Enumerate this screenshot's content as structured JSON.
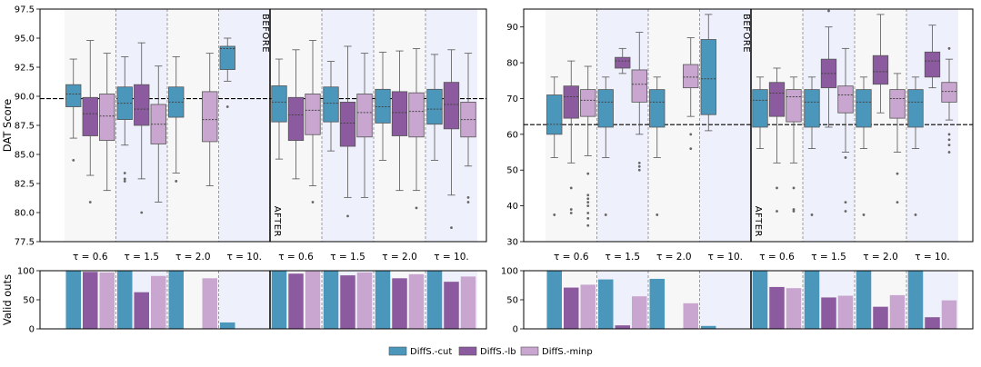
{
  "chart_data": {
    "type": "boxplot",
    "series_names": [
      "DiffS.-cut",
      "DiffS.-lb",
      "DiffS.-minp"
    ],
    "colors": {
      "DiffS.-cut": "#4b97bc",
      "DiffS.-lb": "#8c5a9e",
      "DiffS.-minp": "#c9a6cf"
    },
    "group_labels": [
      "τ = 0.6",
      "τ = 1.5",
      "τ = 2.0",
      "τ = 10."
    ],
    "group_shading": [
      false,
      true,
      false,
      true
    ],
    "section_labels": {
      "before": "BEFORE",
      "after": "AFTER"
    },
    "left": {
      "ylabel": "DAT Score",
      "ylim": [
        77.5,
        97.5
      ],
      "yticks": [
        "77.5",
        "80.0",
        "82.5",
        "85.0",
        "87.5",
        "90.0",
        "92.5",
        "95.0",
        "97.5"
      ],
      "reference_line": 89.8,
      "before": [
        {
          "group": "τ = 0.6",
          "boxes": [
            {
              "series": "DiffS.-cut",
              "min": 86.4,
              "q1": 89.1,
              "median": 90.2,
              "q3": 91.0,
              "max": 93.2,
              "outliers": [
                84.5
              ]
            },
            {
              "series": "DiffS.-lb",
              "min": 83.2,
              "q1": 86.6,
              "median": 88.5,
              "q3": 89.9,
              "max": 94.8,
              "outliers": [
                80.9
              ]
            },
            {
              "series": "DiffS.-minp",
              "min": 81.9,
              "q1": 86.2,
              "median": 88.3,
              "q3": 90.2,
              "max": 93.7,
              "outliers": []
            }
          ]
        },
        {
          "group": "τ = 1.5",
          "boxes": [
            {
              "series": "DiffS.-cut",
              "min": 85.8,
              "q1": 88.0,
              "median": 89.4,
              "q3": 90.8,
              "max": 93.4,
              "outliers": [
                83.4,
                82.9,
                82.7
              ]
            },
            {
              "series": "DiffS.-lb",
              "min": 82.9,
              "q1": 87.5,
              "median": 88.9,
              "q3": 91.0,
              "max": 94.6,
              "outliers": [
                80.0
              ]
            },
            {
              "series": "DiffS.-minp",
              "min": 80.9,
              "q1": 85.9,
              "median": 87.6,
              "q3": 89.3,
              "max": 92.6,
              "outliers": []
            }
          ]
        },
        {
          "group": "τ = 2.0",
          "boxes": [
            {
              "series": "DiffS.-cut",
              "min": 83.4,
              "q1": 88.2,
              "median": 89.5,
              "q3": 90.8,
              "max": 93.4,
              "outliers": [
                82.7
              ]
            },
            {
              "series": "DiffS.-minp",
              "min": 82.3,
              "q1": 86.1,
              "median": 88.0,
              "q3": 90.4,
              "max": 93.7,
              "outliers": []
            }
          ]
        },
        {
          "group": "τ = 10.",
          "boxes": [
            {
              "series": "DiffS.-cut",
              "min": 91.3,
              "q1": 92.3,
              "median": 94.1,
              "q3": 94.3,
              "max": 95.0,
              "outliers": [
                89.1
              ]
            }
          ]
        }
      ],
      "after": [
        {
          "group": "τ = 0.6",
          "boxes": [
            {
              "series": "DiffS.-cut",
              "min": 84.6,
              "q1": 87.8,
              "median": 89.5,
              "q3": 90.9,
              "max": 93.2,
              "outliers": []
            },
            {
              "series": "DiffS.-lb",
              "min": 82.9,
              "q1": 86.2,
              "median": 88.4,
              "q3": 89.9,
              "max": 94.0,
              "outliers": []
            },
            {
              "series": "DiffS.-minp",
              "min": 82.3,
              "q1": 86.7,
              "median": 88.8,
              "q3": 90.2,
              "max": 94.8,
              "outliers": [
                80.9
              ]
            }
          ]
        },
        {
          "group": "τ = 1.5",
          "boxes": [
            {
              "series": "DiffS.-cut",
              "min": 85.3,
              "q1": 87.8,
              "median": 89.4,
              "q3": 90.8,
              "max": 93.0,
              "outliers": []
            },
            {
              "series": "DiffS.-lb",
              "min": 81.3,
              "q1": 85.7,
              "median": 87.7,
              "q3": 89.5,
              "max": 94.3,
              "outliers": [
                79.7
              ]
            },
            {
              "series": "DiffS.-minp",
              "min": 81.3,
              "q1": 86.5,
              "median": 88.6,
              "q3": 90.2,
              "max": 93.7,
              "outliers": []
            }
          ]
        },
        {
          "group": "τ = 2.0",
          "boxes": [
            {
              "series": "DiffS.-cut",
              "min": 84.5,
              "q1": 87.7,
              "median": 89.1,
              "q3": 90.6,
              "max": 93.8,
              "outliers": []
            },
            {
              "series": "DiffS.-lb",
              "min": 81.9,
              "q1": 86.6,
              "median": 88.6,
              "q3": 90.4,
              "max": 93.9,
              "outliers": []
            },
            {
              "series": "DiffS.-minp",
              "min": 81.9,
              "q1": 86.5,
              "median": 88.7,
              "q3": 90.3,
              "max": 94.1,
              "outliers": [
                80.4
              ]
            }
          ]
        },
        {
          "group": "τ = 10.",
          "boxes": [
            {
              "series": "DiffS.-cut",
              "min": 84.5,
              "q1": 87.6,
              "median": 88.9,
              "q3": 90.6,
              "max": 93.6,
              "outliers": []
            },
            {
              "series": "DiffS.-lb",
              "min": 81.5,
              "q1": 87.2,
              "median": 89.3,
              "q3": 91.2,
              "max": 94.0,
              "outliers": [
                78.7
              ]
            },
            {
              "series": "DiffS.-minp",
              "min": 84.0,
              "q1": 86.5,
              "median": 88.0,
              "q3": 89.5,
              "max": 93.7,
              "outliers": [
                81.3,
                80.9
              ]
            }
          ]
        }
      ]
    },
    "right": {
      "ylabel": "",
      "ylim": [
        30,
        95
      ],
      "yticks": [
        "30",
        "40",
        "50",
        "60",
        "70",
        "80",
        "90"
      ],
      "reference_line": 62.7,
      "before": [
        {
          "group": "τ = 0.6",
          "boxes": [
            {
              "series": "DiffS.-cut",
              "min": 53.5,
              "q1": 60.0,
              "median": 62.8,
              "q3": 71.0,
              "max": 76.0,
              "outliers": [
                37.5
              ]
            },
            {
              "series": "DiffS.-lb",
              "min": 52.0,
              "q1": 64.5,
              "median": 70.5,
              "q3": 73.5,
              "max": 80.5,
              "outliers": [
                45.0,
                39.0,
                38.0
              ]
            },
            {
              "series": "DiffS.-minp",
              "min": 54.0,
              "q1": 65.0,
              "median": 69.5,
              "q3": 72.5,
              "max": 79.0,
              "outliers": [
                49.0,
                43.0,
                42.0,
                41.0,
                40.0,
                38.0,
                36.5,
                34.5
              ]
            }
          ]
        },
        {
          "group": "τ = 1.5",
          "boxes": [
            {
              "series": "DiffS.-cut",
              "min": 53.5,
              "q1": 62.0,
              "median": 69.0,
              "q3": 72.5,
              "max": 76.0,
              "outliers": [
                37.5
              ]
            },
            {
              "series": "DiffS.-lb",
              "min": 77.0,
              "q1": 78.5,
              "median": 80.5,
              "q3": 81.5,
              "max": 84.0,
              "outliers": []
            },
            {
              "series": "DiffS.-minp",
              "min": 60.0,
              "q1": 69.0,
              "median": 74.0,
              "q3": 78.0,
              "max": 88.5,
              "outliers": [
                52.0,
                51.0,
                50.0
              ]
            }
          ]
        },
        {
          "group": "τ = 2.0",
          "boxes": [
            {
              "series": "DiffS.-cut",
              "min": 53.5,
              "q1": 62.0,
              "median": 69.0,
              "q3": 72.5,
              "max": 76.0,
              "outliers": [
                37.5
              ]
            },
            {
              "series": "DiffS.-minp",
              "min": 65.0,
              "q1": 73.0,
              "median": 76.0,
              "q3": 79.5,
              "max": 87.0,
              "outliers": [
                60.0,
                56.0
              ]
            }
          ]
        },
        {
          "group": "τ = 10.",
          "boxes": [
            {
              "series": "DiffS.-cut",
              "min": 61.0,
              "q1": 65.5,
              "median": 75.5,
              "q3": 86.5,
              "max": 93.5,
              "outliers": []
            }
          ]
        }
      ],
      "after": [
        {
          "group": "τ = 0.6",
          "boxes": [
            {
              "series": "DiffS.-cut",
              "min": 56.0,
              "q1": 62.0,
              "median": 69.5,
              "q3": 72.5,
              "max": 76.0,
              "outliers": []
            },
            {
              "series": "DiffS.-lb",
              "min": 52.0,
              "q1": 65.0,
              "median": 71.5,
              "q3": 74.5,
              "max": 78.5,
              "outliers": [
                45.0,
                38.5
              ]
            },
            {
              "series": "DiffS.-minp",
              "min": 52.0,
              "q1": 63.5,
              "median": 70.5,
              "q3": 72.5,
              "max": 76.0,
              "outliers": [
                45.0,
                39.0,
                38.5
              ]
            }
          ]
        },
        {
          "group": "τ = 1.5",
          "boxes": [
            {
              "series": "DiffS.-cut",
              "min": 56.0,
              "q1": 62.0,
              "median": 69.0,
              "q3": 72.5,
              "max": 76.0,
              "outliers": [
                37.5
              ]
            },
            {
              "series": "DiffS.-lb",
              "min": 62.0,
              "q1": 73.0,
              "median": 77.0,
              "q3": 81.0,
              "max": 90.0,
              "outliers": [
                94.5
              ]
            },
            {
              "series": "DiffS.-minp",
              "min": 55.0,
              "q1": 66.0,
              "median": 71.0,
              "q3": 73.5,
              "max": 84.0,
              "outliers": [
                53.5,
                41.0,
                38.5
              ]
            }
          ]
        },
        {
          "group": "τ = 2.0",
          "boxes": [
            {
              "series": "DiffS.-cut",
              "min": 56.0,
              "q1": 62.0,
              "median": 69.0,
              "q3": 72.5,
              "max": 76.0,
              "outliers": [
                37.5
              ]
            },
            {
              "series": "DiffS.-lb",
              "min": 66.0,
              "q1": 74.0,
              "median": 77.5,
              "q3": 82.0,
              "max": 93.5,
              "outliers": []
            },
            {
              "series": "DiffS.-minp",
              "min": 55.0,
              "q1": 64.5,
              "median": 70.0,
              "q3": 72.5,
              "max": 77.0,
              "outliers": [
                49.0,
                41.0
              ]
            }
          ]
        },
        {
          "group": "τ = 10.",
          "boxes": [
            {
              "series": "DiffS.-cut",
              "min": 56.0,
              "q1": 62.0,
              "median": 69.0,
              "q3": 72.5,
              "max": 76.0,
              "outliers": [
                37.5
              ]
            },
            {
              "series": "DiffS.-lb",
              "min": 73.0,
              "q1": 76.0,
              "median": 80.5,
              "q3": 83.0,
              "max": 90.5,
              "outliers": []
            },
            {
              "series": "DiffS.-minp",
              "min": 64.0,
              "q1": 69.0,
              "median": 72.0,
              "q3": 74.5,
              "max": 81.0,
              "outliers": [
                84.0,
                60.0,
                58.5,
                57.0,
                55.0
              ]
            }
          ]
        }
      ]
    },
    "valid_outs": {
      "ylabel": "Valid outs",
      "ylim": [
        0,
        100
      ],
      "yticks": [
        "0",
        "50",
        "100"
      ],
      "left": {
        "before": [
          {
            "group": "τ = 0.6",
            "values": {
              "DiffS.-cut": 100,
              "DiffS.-lb": 98,
              "DiffS.-minp": 97
            }
          },
          {
            "group": "τ = 1.5",
            "values": {
              "DiffS.-cut": 100,
              "DiffS.-lb": 63,
              "DiffS.-minp": 91
            }
          },
          {
            "group": "τ = 2.0",
            "values": {
              "DiffS.-cut": 100,
              "DiffS.-minp": 87
            }
          },
          {
            "group": "τ = 10.",
            "values": {
              "DiffS.-cut": 11
            }
          }
        ],
        "after": [
          {
            "group": "τ = 0.6",
            "values": {
              "DiffS.-cut": 100,
              "DiffS.-lb": 95,
              "DiffS.-minp": 99
            }
          },
          {
            "group": "τ = 1.5",
            "values": {
              "DiffS.-cut": 100,
              "DiffS.-lb": 92,
              "DiffS.-minp": 97
            }
          },
          {
            "group": "τ = 2.0",
            "values": {
              "DiffS.-cut": 100,
              "DiffS.-lb": 87,
              "DiffS.-minp": 94
            }
          },
          {
            "group": "τ = 10.",
            "values": {
              "DiffS.-cut": 100,
              "DiffS.-lb": 81,
              "DiffS.-minp": 90
            }
          }
        ]
      },
      "right": {
        "before": [
          {
            "group": "τ = 0.6",
            "values": {
              "DiffS.-cut": 100,
              "DiffS.-lb": 71,
              "DiffS.-minp": 76
            }
          },
          {
            "group": "τ = 1.5",
            "values": {
              "DiffS.-cut": 85,
              "DiffS.-lb": 6,
              "DiffS.-minp": 56
            }
          },
          {
            "group": "τ = 2.0",
            "values": {
              "DiffS.-cut": 86,
              "DiffS.-minp": 44
            }
          },
          {
            "group": "τ = 10.",
            "values": {
              "DiffS.-cut": 5
            }
          }
        ],
        "after": [
          {
            "group": "τ = 0.6",
            "values": {
              "DiffS.-cut": 100,
              "DiffS.-lb": 72,
              "DiffS.-minp": 70
            }
          },
          {
            "group": "τ = 1.5",
            "values": {
              "DiffS.-cut": 100,
              "DiffS.-lb": 54,
              "DiffS.-minp": 57
            }
          },
          {
            "group": "τ = 2.0",
            "values": {
              "DiffS.-cut": 100,
              "DiffS.-lb": 38,
              "DiffS.-minp": 58
            }
          },
          {
            "group": "τ = 10.",
            "values": {
              "DiffS.-cut": 100,
              "DiffS.-lb": 20,
              "DiffS.-minp": 49
            }
          }
        ]
      }
    }
  }
}
